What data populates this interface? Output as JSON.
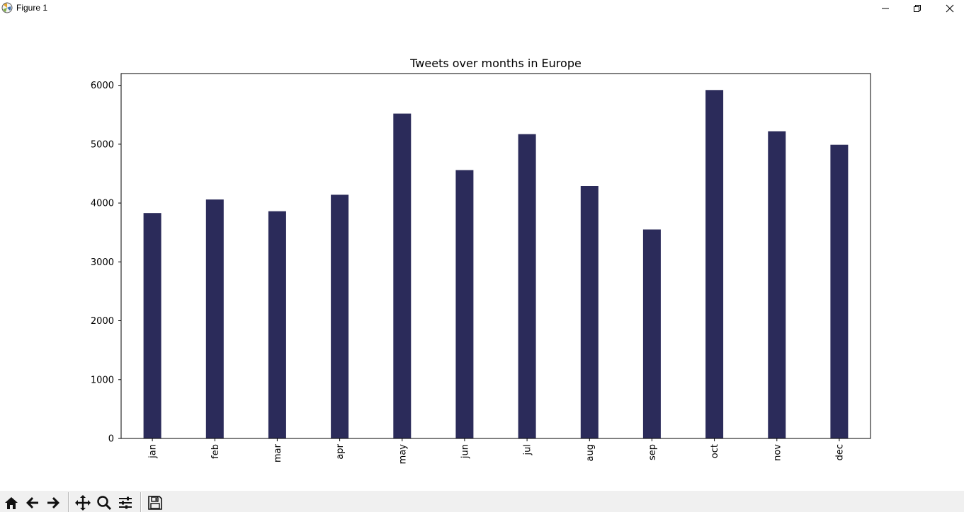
{
  "window": {
    "title": "Figure 1",
    "controls": [
      "minimize-icon",
      "restore-icon",
      "close-icon"
    ]
  },
  "toolbar": {
    "tools": [
      "home-icon",
      "back-arrow-icon",
      "forward-arrow-icon",
      "pan-icon",
      "zoom-icon",
      "configure-subplots-icon",
      "save-icon"
    ]
  },
  "chart_data": {
    "type": "bar",
    "title": "Tweets over months in Europe",
    "xlabel": "",
    "ylabel": "",
    "categories": [
      "jan",
      "feb",
      "mar",
      "apr",
      "may",
      "jun",
      "jul",
      "aug",
      "sep",
      "oct",
      "nov",
      "dec"
    ],
    "values": [
      3830,
      4060,
      3860,
      4140,
      5520,
      4560,
      5170,
      4290,
      3550,
      5920,
      5220,
      4990
    ],
    "ylim": [
      0,
      6200
    ],
    "yticks": [
      0,
      1000,
      2000,
      3000,
      4000,
      5000,
      6000
    ],
    "bar_color": "#2b2b5a",
    "grid": false,
    "legend": "none",
    "xtick_rotation": "vertical"
  }
}
